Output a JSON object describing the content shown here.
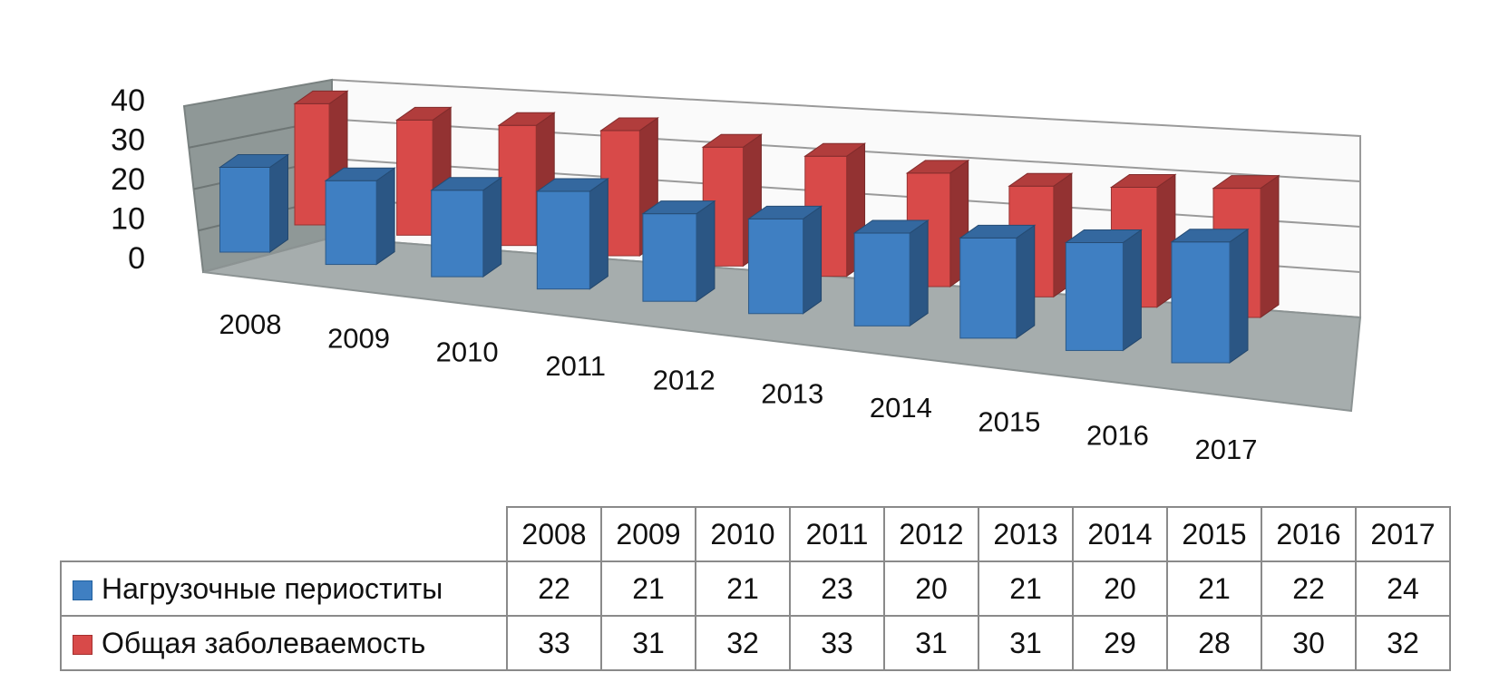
{
  "chart_data": {
    "type": "bar",
    "subtype": "3d-clustered-columns",
    "categories": [
      "2008",
      "2009",
      "2010",
      "2011",
      "2012",
      "2013",
      "2014",
      "2015",
      "2016",
      "2017"
    ],
    "series": [
      {
        "name": "Нагрузочные периоститы",
        "color": "#3f7fc2",
        "values": [
          22,
          21,
          21,
          23,
          20,
          21,
          20,
          21,
          22,
          24
        ]
      },
      {
        "name": "Общая заболеваемость",
        "color": "#d84a49",
        "values": [
          33,
          31,
          32,
          33,
          31,
          31,
          29,
          28,
          30,
          32
        ]
      }
    ],
    "ylim": [
      0,
      40
    ],
    "yticks": [
      "0",
      "10",
      "20",
      "30",
      "40"
    ],
    "grid": true,
    "legend": "data-table below chart"
  }
}
